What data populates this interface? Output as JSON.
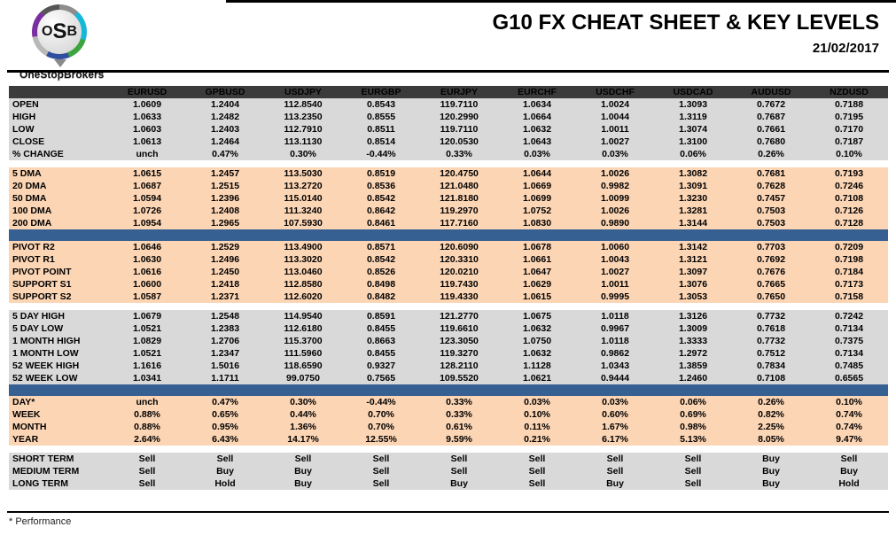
{
  "header": {
    "logo_letters": {
      "o": "O",
      "s": "S",
      "b": "B"
    },
    "brand": "OneStopBrokers",
    "title": "G10 FX CHEAT SHEET & KEY LEVELS",
    "date": "21/02/2017"
  },
  "colors": {
    "header_bg": "#3B3B3B",
    "gray_row_bg": "#D9D9D9",
    "peach_row_bg": "#FCD5B4",
    "blue_divider": "#376092",
    "green": "#00B050",
    "red": "#FF0000",
    "navy": "#1F497D"
  },
  "table": {
    "columns": [
      "EURUSD",
      "GPBUSD",
      "USDJPY",
      "EURGBP",
      "EURJPY",
      "EURCHF",
      "USDCHF",
      "USDCAD",
      "AUDUSD",
      "NZDUSD"
    ],
    "signal_colors": {
      "Sell": "#FF0000",
      "Buy": "#00B050",
      "Hold": "#1F497D"
    },
    "sections": [
      {
        "id": "ohlc",
        "bg": "gray",
        "after": "gap",
        "rows": [
          {
            "label": "OPEN",
            "values": [
              "1.0609",
              "1.2404",
              "112.8540",
              "0.8543",
              "119.7110",
              "1.0634",
              "1.0024",
              "1.3093",
              "0.7672",
              "0.7188"
            ]
          },
          {
            "label": "HIGH",
            "values": [
              "1.0633",
              "1.2482",
              "113.2350",
              "0.8555",
              "120.2990",
              "1.0664",
              "1.0044",
              "1.3119",
              "0.7687",
              "0.7195"
            ]
          },
          {
            "label": "LOW",
            "values": [
              "1.0603",
              "1.2403",
              "112.7910",
              "0.8511",
              "119.7110",
              "1.0632",
              "1.0011",
              "1.3074",
              "0.7661",
              "0.7170"
            ]
          },
          {
            "label": "CLOSE",
            "values": [
              "1.0613",
              "1.2464",
              "113.1130",
              "0.8514",
              "120.0530",
              "1.0643",
              "1.0027",
              "1.3100",
              "0.7680",
              "0.7187"
            ]
          },
          {
            "label": "% CHANGE",
            "values": [
              "unch",
              "0.47%",
              "0.30%",
              "-0.44%",
              "0.33%",
              "0.03%",
              "0.03%",
              "0.06%",
              "0.26%",
              "0.10%"
            ]
          }
        ]
      },
      {
        "id": "dma",
        "bg": "peach",
        "after": "blue",
        "rows": [
          {
            "label": "5 DMA",
            "values": [
              "1.0615",
              "1.2457",
              "113.5030",
              "0.8519",
              "120.4750",
              "1.0644",
              "1.0026",
              "1.3082",
              "0.7681",
              "0.7193"
            ]
          },
          {
            "label": "20 DMA",
            "values": [
              "1.0687",
              "1.2515",
              "113.2720",
              "0.8536",
              "121.0480",
              "1.0669",
              "0.9982",
              "1.3091",
              "0.7628",
              "0.7246"
            ]
          },
          {
            "label": "50 DMA",
            "values": [
              "1.0594",
              "1.2396",
              "115.0140",
              "0.8542",
              "121.8180",
              "1.0699",
              "1.0099",
              "1.3230",
              "0.7457",
              "0.7108"
            ]
          },
          {
            "label": "100 DMA",
            "values": [
              "1.0726",
              "1.2408",
              "111.3240",
              "0.8642",
              "119.2970",
              "1.0752",
              "1.0026",
              "1.3281",
              "0.7503",
              "0.7126"
            ]
          },
          {
            "label": "200 DMA",
            "values": [
              "1.0954",
              "1.2965",
              "107.5930",
              "0.8461",
              "117.7160",
              "1.0830",
              "0.9890",
              "1.3144",
              "0.7503",
              "0.7128"
            ]
          }
        ]
      },
      {
        "id": "pivots",
        "bg": "peach",
        "after": "gap",
        "rows": [
          {
            "label": "PIVOT R2",
            "label_color": "green",
            "values": [
              "1.0646",
              "1.2529",
              "113.4900",
              "0.8571",
              "120.6090",
              "1.0678",
              "1.0060",
              "1.3142",
              "0.7703",
              "0.7209"
            ]
          },
          {
            "label": "PIVOT R1",
            "label_color": "green",
            "values": [
              "1.0630",
              "1.2496",
              "113.3020",
              "0.8542",
              "120.3310",
              "1.0661",
              "1.0043",
              "1.3121",
              "0.7692",
              "0.7198"
            ]
          },
          {
            "label": "PIVOT POINT",
            "label_color": "navy",
            "values": [
              "1.0616",
              "1.2450",
              "113.0460",
              "0.8526",
              "120.0210",
              "1.0647",
              "1.0027",
              "1.3097",
              "0.7676",
              "0.7184"
            ]
          },
          {
            "label": "SUPPORT S1",
            "label_color": "red",
            "values": [
              "1.0600",
              "1.2418",
              "112.8580",
              "0.8498",
              "119.7430",
              "1.0629",
              "1.0011",
              "1.3076",
              "0.7665",
              "0.7173"
            ]
          },
          {
            "label": "SUPPORT S2",
            "label_color": "red",
            "values": [
              "1.0587",
              "1.2371",
              "112.6020",
              "0.8482",
              "119.4330",
              "1.0615",
              "0.9995",
              "1.3053",
              "0.7650",
              "0.7158"
            ]
          }
        ]
      },
      {
        "id": "ranges",
        "bg": "gray",
        "after": "blue",
        "rows": [
          {
            "label": "5 DAY HIGH",
            "values": [
              "1.0679",
              "1.2548",
              "114.9540",
              "0.8591",
              "121.2770",
              "1.0675",
              "1.0118",
              "1.3126",
              "0.7732",
              "0.7242"
            ]
          },
          {
            "label": "5 DAY LOW",
            "values": [
              "1.0521",
              "1.2383",
              "112.6180",
              "0.8455",
              "119.6610",
              "1.0632",
              "0.9967",
              "1.3009",
              "0.7618",
              "0.7134"
            ]
          },
          {
            "label": "1 MONTH HIGH",
            "values": [
              "1.0829",
              "1.2706",
              "115.3700",
              "0.8663",
              "123.3050",
              "1.0750",
              "1.0118",
              "1.3333",
              "0.7732",
              "0.7375"
            ]
          },
          {
            "label": "1 MONTH LOW",
            "values": [
              "1.0521",
              "1.2347",
              "111.5960",
              "0.8455",
              "119.3270",
              "1.0632",
              "0.9862",
              "1.2972",
              "0.7512",
              "0.7134"
            ]
          },
          {
            "label": "52 WEEK HIGH",
            "values": [
              "1.1616",
              "1.5016",
              "118.6590",
              "0.9327",
              "128.2110",
              "1.1128",
              "1.0343",
              "1.3859",
              "0.7834",
              "0.7485"
            ]
          },
          {
            "label": "52 WEEK LOW",
            "values": [
              "1.0341",
              "1.1711",
              "99.0750",
              "0.7565",
              "109.5520",
              "1.0621",
              "0.9444",
              "1.2460",
              "0.7108",
              "0.6565"
            ]
          }
        ]
      },
      {
        "id": "performance",
        "bg": "peach",
        "after": "gap",
        "rows": [
          {
            "label": "DAY*",
            "values": [
              "unch",
              "0.47%",
              "0.30%",
              "-0.44%",
              "0.33%",
              "0.03%",
              "0.03%",
              "0.06%",
              "0.26%",
              "0.10%"
            ]
          },
          {
            "label": "WEEK",
            "values": [
              "0.88%",
              "0.65%",
              "0.44%",
              "0.70%",
              "0.33%",
              "0.10%",
              "0.60%",
              "0.69%",
              "0.82%",
              "0.74%"
            ]
          },
          {
            "label": "MONTH",
            "values": [
              "0.88%",
              "0.95%",
              "1.36%",
              "0.70%",
              "0.61%",
              "0.11%",
              "1.67%",
              "0.98%",
              "2.25%",
              "0.74%"
            ]
          },
          {
            "label": "YEAR",
            "values": [
              "2.64%",
              "6.43%",
              "14.17%",
              "12.55%",
              "9.59%",
              "0.21%",
              "6.17%",
              "5.13%",
              "8.05%",
              "9.47%"
            ]
          }
        ]
      },
      {
        "id": "signals",
        "bg": "gray",
        "signal": true,
        "after": null,
        "rows": [
          {
            "label": "SHORT TERM",
            "values": [
              "Sell",
              "Sell",
              "Sell",
              "Sell",
              "Sell",
              "Sell",
              "Sell",
              "Sell",
              "Buy",
              "Sell"
            ]
          },
          {
            "label": "MEDIUM TERM",
            "values": [
              "Sell",
              "Buy",
              "Buy",
              "Sell",
              "Sell",
              "Sell",
              "Sell",
              "Sell",
              "Buy",
              "Buy"
            ]
          },
          {
            "label": "LONG TERM",
            "values": [
              "Sell",
              "Hold",
              "Buy",
              "Sell",
              "Buy",
              "Sell",
              "Buy",
              "Sell",
              "Buy",
              "Hold"
            ]
          }
        ]
      }
    ]
  },
  "footnote": "* Performance"
}
